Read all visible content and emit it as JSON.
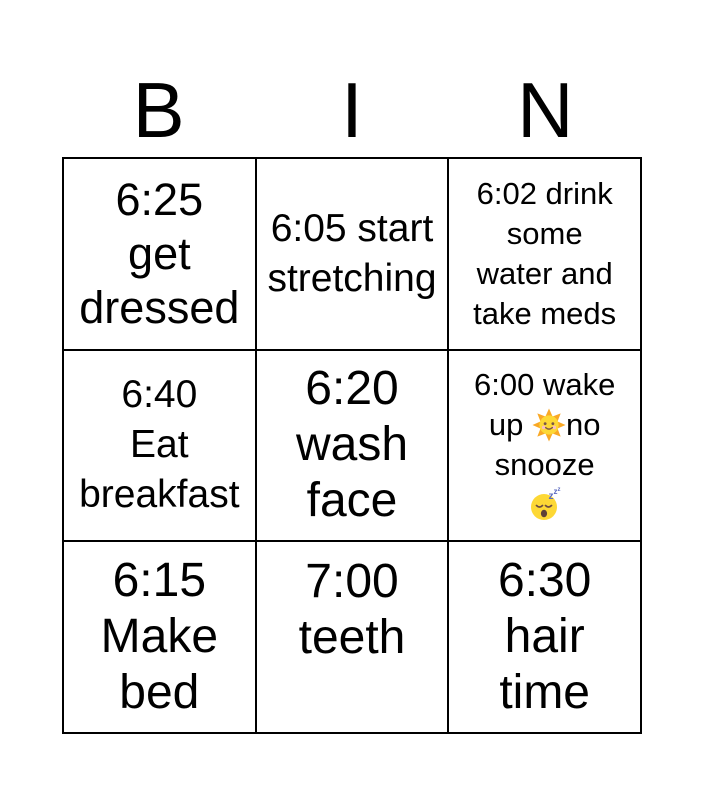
{
  "title": {
    "letters": [
      "B",
      "I",
      "N"
    ]
  },
  "colors": {
    "background": "#ffffff",
    "grid_line": "#000000",
    "text": "#000000",
    "emoji_sun": "#FDD835",
    "emoji_zzz": "#5C6BC0"
  },
  "grid": {
    "rows": 3,
    "cols": 3,
    "cells": [
      {
        "id": "get-dressed",
        "text": "6:25 get dressed",
        "lines": [
          "6:25",
          "get",
          "dressed"
        ],
        "size": "lg"
      },
      {
        "id": "start-stretching",
        "text": "6:05 start stretching",
        "lines": [
          "6:05 start",
          "stretching"
        ],
        "size": "md"
      },
      {
        "id": "drink-water-take-meds",
        "text": "6:02 drink some water and take meds",
        "lines": [
          "6:02 drink",
          "some",
          "water and",
          "take meds"
        ],
        "size": "sm"
      },
      {
        "id": "eat-breakfast",
        "text": "6:40 Eat breakfast",
        "lines": [
          "6:40",
          "Eat",
          "breakfast"
        ],
        "size": "md"
      },
      {
        "id": "wash-face",
        "text": "6:20 wash face",
        "lines": [
          "6:20",
          "wash",
          "face"
        ],
        "size": "xl"
      },
      {
        "id": "wake-up-no-snooze",
        "text": "6:00 wake up 🌞no snooze 😴",
        "lines": [
          "6:00 wake",
          "up 🌞no",
          "snooze",
          "😴"
        ],
        "size": "sm"
      },
      {
        "id": "make-bed",
        "text": "6:15 Make bed",
        "lines": [
          "6:15",
          "Make",
          "bed"
        ],
        "size": "xl"
      },
      {
        "id": "brush-teeth",
        "text": "7:00 teeth",
        "lines": [
          "7:00",
          "teeth"
        ],
        "size": "xl",
        "align": "top"
      },
      {
        "id": "hair-time",
        "text": "6:30 hair time",
        "lines": [
          "6:30",
          "hair",
          "time"
        ],
        "size": "xl"
      }
    ]
  },
  "emoji_names": {
    "🌞": "sun-with-face-emoji",
    "😴": "sleeping-face-emoji"
  }
}
